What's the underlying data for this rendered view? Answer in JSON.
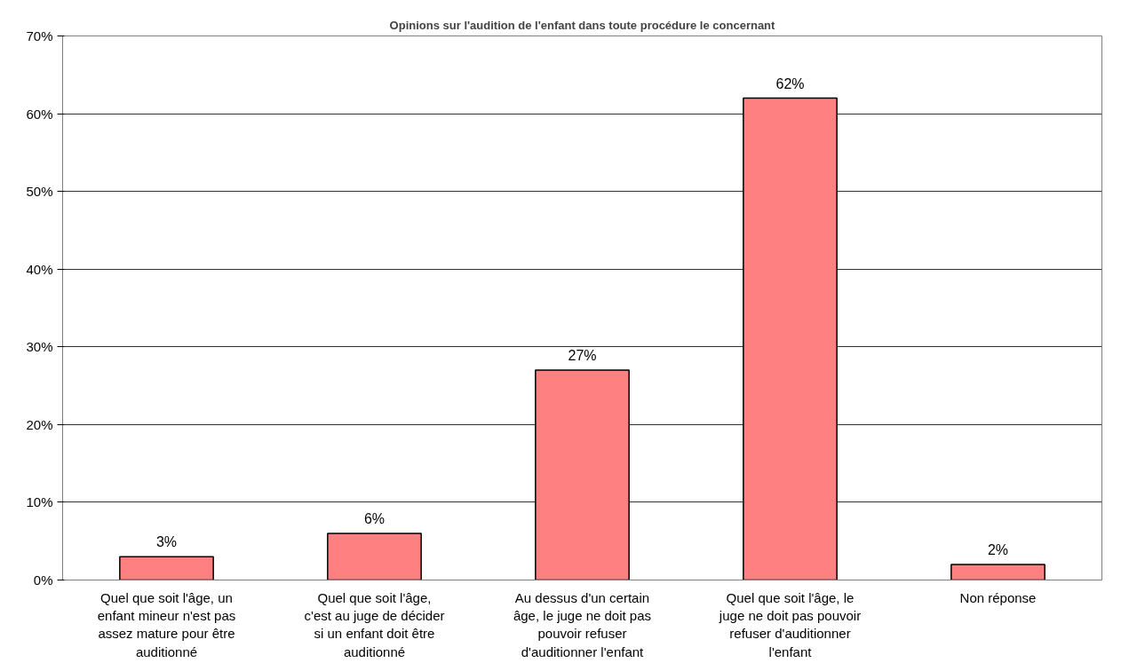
{
  "chart_data": {
    "type": "bar",
    "title": "Opinions sur l'audition de l'enfant dans toute procédure le concernant",
    "categories": [
      "Quel que soit l'âge, un enfant mineur n'est pas assez mature pour être auditionné",
      "Quel que soit l'âge, c'est au juge de décider si un enfant doit être auditionné",
      "Au dessus d'un certain âge, le juge ne doit pas pouvoir refuser d'auditionner l'enfant",
      "Quel que soit l'âge, le juge ne doit pas pouvoir refuser d'auditionner l'enfant",
      "Non réponse"
    ],
    "values": [
      3,
      6,
      27,
      62,
      2
    ],
    "color": "#ff8080",
    "value_labels": [
      "3%",
      "6%",
      "27%",
      "62%",
      "2%"
    ],
    "ylim": [
      0,
      70
    ],
    "yticks": [
      {
        "value": 0,
        "label": "0%"
      },
      {
        "value": 10,
        "label": "10%"
      },
      {
        "value": 20,
        "label": "20%"
      },
      {
        "value": 30,
        "label": "30%"
      },
      {
        "value": 40,
        "label": "40%"
      },
      {
        "value": 50,
        "label": "50%"
      },
      {
        "value": 60,
        "label": "60%"
      },
      {
        "value": 70,
        "label": "70%"
      }
    ],
    "grid": "y"
  }
}
